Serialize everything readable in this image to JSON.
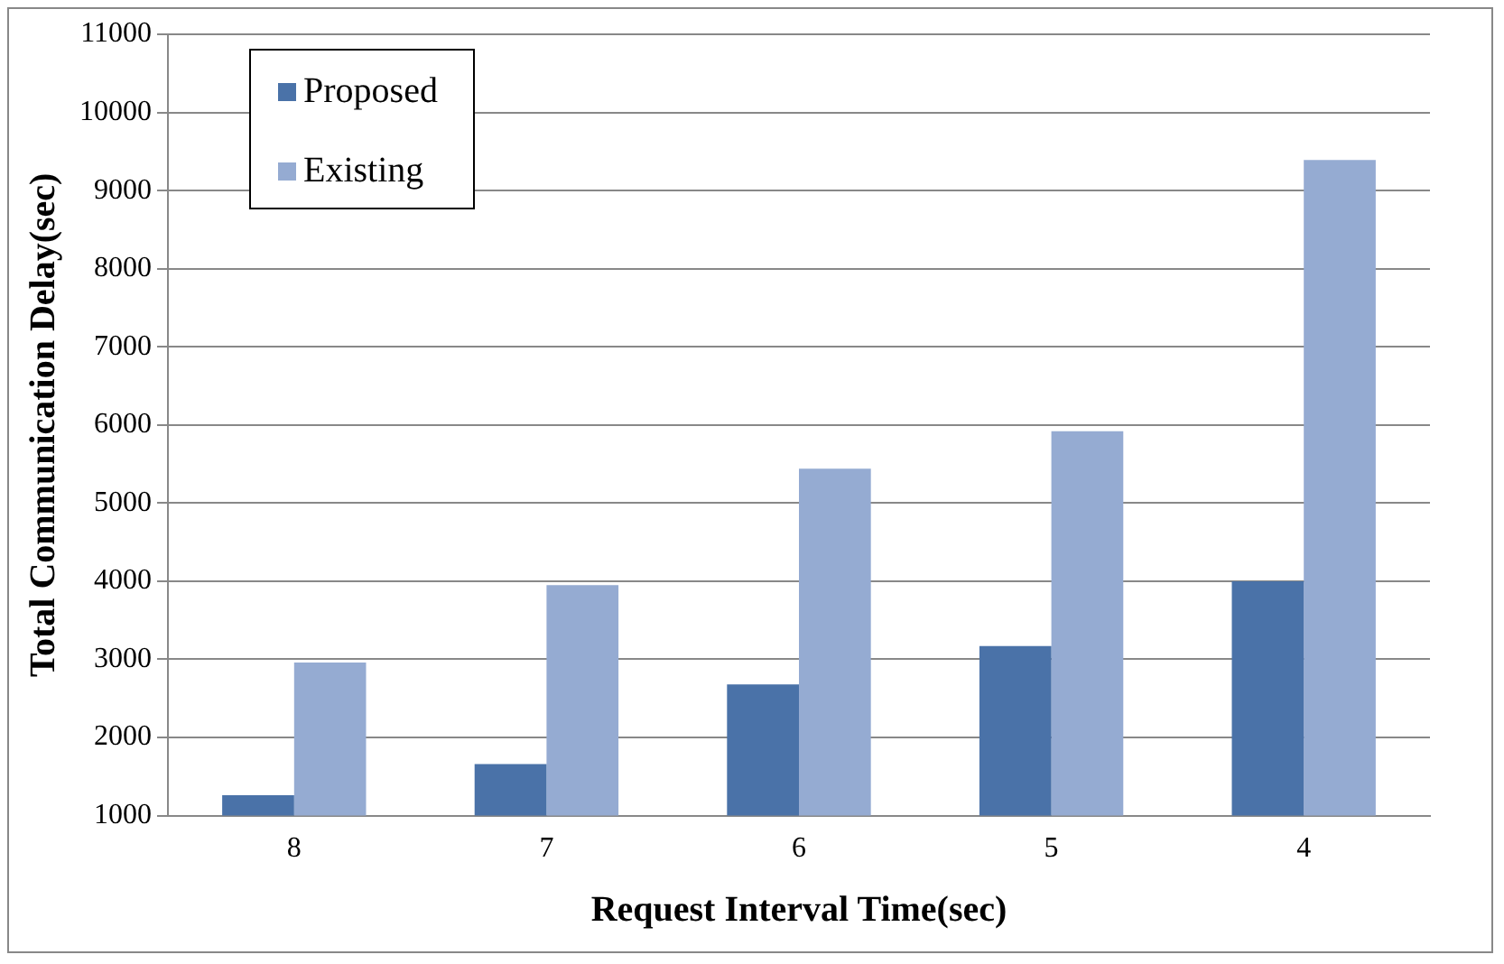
{
  "chart_data": {
    "type": "bar",
    "xlabel": "Request Interval Time(sec)",
    "ylabel": "Total Communication Delay(sec)",
    "categories": [
      "8",
      "7",
      "6",
      "5",
      "4"
    ],
    "series": [
      {
        "name": "Proposed",
        "color": "#4a72a8",
        "values": [
          1260,
          1660,
          2680,
          3170,
          4000
        ]
      },
      {
        "name": "Existing",
        "color": "#95abd2",
        "values": [
          2960,
          3950,
          5440,
          5920,
          9390
        ]
      }
    ],
    "ylim": [
      1000,
      11000
    ],
    "yticks": [
      1000,
      2000,
      3000,
      4000,
      5000,
      6000,
      7000,
      8000,
      9000,
      10000,
      11000
    ],
    "grid": "y",
    "legend": "top left"
  }
}
